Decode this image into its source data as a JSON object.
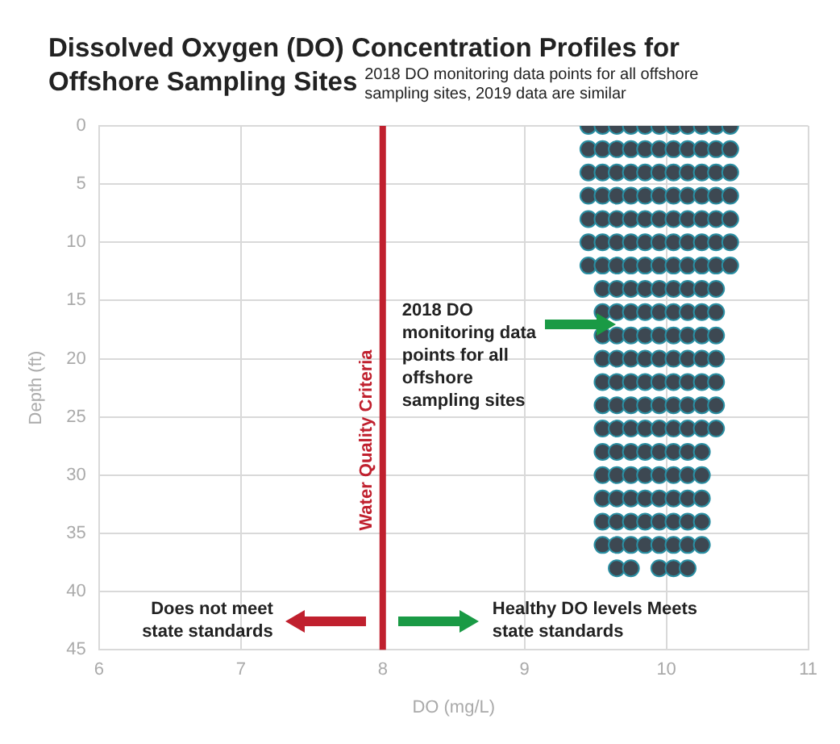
{
  "chart_data": {
    "type": "scatter",
    "title": "Dissolved Oxygen (DO) Concentration Profiles for Offshore Sampling Sites",
    "subtitle": "2018 DO monitoring data points for all offshore sampling sites, 2019 data are similar",
    "xlabel": "DO (mg/L)",
    "ylabel": "Depth (ft)",
    "xlim": [
      6,
      11
    ],
    "ylim": [
      45,
      0
    ],
    "xticks": [
      6,
      7,
      8,
      9,
      10,
      11
    ],
    "yticks": [
      0,
      5,
      10,
      15,
      20,
      25,
      30,
      35,
      40,
      45
    ],
    "grid": true,
    "legend": false,
    "marker": "circle",
    "series": [
      {
        "color": "#3d4852",
        "x": [
          9.45,
          9.45,
          9.45,
          9.45,
          9.45,
          9.45,
          9.45,
          9.55,
          9.55,
          9.55,
          9.55,
          9.55,
          9.55,
          9.55,
          9.55,
          9.55,
          9.55,
          9.55,
          9.55,
          9.55,
          9.55,
          9.55,
          9.55,
          9.55,
          9.55,
          9.55,
          9.65,
          9.65,
          9.65,
          9.65,
          9.65,
          9.65,
          9.65,
          9.65,
          9.65,
          9.65,
          9.65,
          9.65,
          9.65,
          9.65,
          9.65,
          9.65,
          9.65,
          9.65,
          9.65,
          9.65,
          9.75,
          9.75,
          9.75,
          9.75,
          9.75,
          9.75,
          9.75,
          9.75,
          9.75,
          9.75,
          9.75,
          9.75,
          9.75,
          9.75,
          9.75,
          9.75,
          9.75,
          9.75,
          9.75,
          9.75,
          9.85,
          9.85,
          9.85,
          9.85,
          9.85,
          9.85,
          9.85,
          9.85,
          9.85,
          9.85,
          9.85,
          9.85,
          9.85,
          9.85,
          9.85,
          9.85,
          9.85,
          9.85,
          9.85,
          9.95,
          9.95,
          9.95,
          9.95,
          9.95,
          9.95,
          9.95,
          9.95,
          9.95,
          9.95,
          9.95,
          9.95,
          9.95,
          9.95,
          9.95,
          9.95,
          9.95,
          9.95,
          9.95,
          9.95,
          10.05,
          10.05,
          10.05,
          10.05,
          10.05,
          10.05,
          10.05,
          10.05,
          10.05,
          10.05,
          10.05,
          10.05,
          10.05,
          10.05,
          10.05,
          10.05,
          10.05,
          10.05,
          10.05,
          10.05,
          10.15,
          10.15,
          10.15,
          10.15,
          10.15,
          10.15,
          10.15,
          10.15,
          10.15,
          10.15,
          10.15,
          10.15,
          10.15,
          10.15,
          10.15,
          10.15,
          10.15,
          10.15,
          10.15,
          10.15,
          10.25,
          10.25,
          10.25,
          10.25,
          10.25,
          10.25,
          10.25,
          10.25,
          10.25,
          10.25,
          10.25,
          10.25,
          10.25,
          10.25,
          10.25,
          10.25,
          10.25,
          10.25,
          10.25,
          10.35,
          10.35,
          10.35,
          10.35,
          10.35,
          10.35,
          10.35,
          10.35,
          10.35,
          10.35,
          10.35,
          10.35,
          10.35,
          10.35,
          10.45,
          10.45,
          10.45,
          10.45,
          10.45,
          10.45,
          10.45
        ],
        "values": [
          0,
          2,
          4,
          6,
          8,
          10,
          12,
          0,
          2,
          4,
          6,
          8,
          10,
          12,
          14,
          16,
          18,
          20,
          22,
          24,
          26,
          28,
          30,
          32,
          34,
          36,
          0,
          2,
          4,
          6,
          8,
          10,
          12,
          14,
          16,
          18,
          20,
          22,
          24,
          26,
          28,
          30,
          32,
          34,
          36,
          38,
          0,
          2,
          4,
          6,
          8,
          10,
          12,
          14,
          16,
          18,
          20,
          22,
          24,
          26,
          28,
          30,
          32,
          34,
          36,
          38,
          0,
          2,
          4,
          6,
          8,
          10,
          12,
          14,
          16,
          18,
          20,
          22,
          24,
          26,
          28,
          30,
          32,
          34,
          36,
          0,
          2,
          4,
          6,
          8,
          10,
          12,
          14,
          16,
          18,
          20,
          22,
          24,
          26,
          28,
          30,
          32,
          34,
          36,
          38,
          0,
          2,
          4,
          6,
          8,
          10,
          12,
          14,
          16,
          18,
          20,
          22,
          24,
          26,
          28,
          30,
          32,
          34,
          36,
          38,
          0,
          2,
          4,
          6,
          8,
          10,
          12,
          14,
          16,
          18,
          20,
          22,
          24,
          26,
          28,
          30,
          32,
          34,
          36,
          38,
          0,
          2,
          4,
          6,
          8,
          10,
          12,
          14,
          16,
          18,
          20,
          22,
          24,
          26,
          28,
          30,
          32,
          34,
          36,
          0,
          2,
          4,
          6,
          8,
          10,
          12,
          14,
          16,
          18,
          20,
          22,
          24,
          26,
          0,
          2,
          4,
          6,
          8,
          10,
          12
        ]
      }
    ],
    "ref_lines": [
      {
        "axis": "x",
        "value": 8,
        "label": "Water Quality Criteria",
        "color": "#c0202e"
      }
    ],
    "annotations": [
      "2018 DO monitoring data points for all offshore sampling sites",
      "Does not meet state standards",
      "Healthy DO levels Meets state standards"
    ]
  }
}
